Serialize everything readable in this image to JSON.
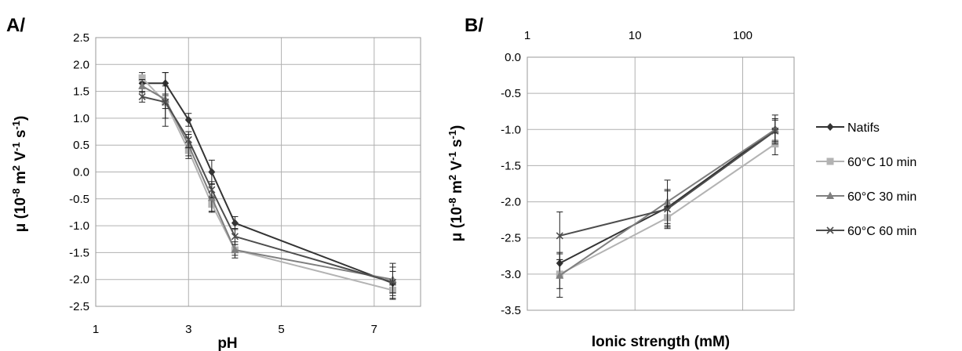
{
  "colors": {
    "Natifs": "#333333",
    "60°C 10 min": "#b3b3b3",
    "60°C 30 min": "#7f7f7f",
    "60°C 60 min": "#4d4d4d",
    "grid": "#b0b0b0",
    "errorbar": "#222222"
  },
  "legend": {
    "items": [
      {
        "label": "Natifs",
        "marker": "diamond"
      },
      {
        "label": "60°C 10 min",
        "marker": "square"
      },
      {
        "label": "60°C 30 min",
        "marker": "triangle"
      },
      {
        "label": "60°C 60 min",
        "marker": "x"
      }
    ],
    "placement": "right"
  },
  "chart_data": [
    {
      "panel_label": "A/",
      "type": "line",
      "xlabel": "pH",
      "ylabel": "μ (10-8 m2 V-1 s-1)",
      "xlim": [
        1,
        8
      ],
      "ylim": [
        -2.5,
        2.5
      ],
      "x_ticks": [
        "1",
        "3",
        "5",
        "7"
      ],
      "x_tick_values": [
        1,
        3,
        5,
        7
      ],
      "y_ticks": [
        "2.5",
        "2.0",
        "1.5",
        "1.0",
        "0.5",
        "0.0",
        "-0.5",
        "-1.0",
        "-1.5",
        "-2.0",
        "-2.5"
      ],
      "y_tick_values": [
        2.5,
        2.0,
        1.5,
        1.0,
        0.5,
        0.0,
        -0.5,
        -1.0,
        -1.5,
        -2.0,
        -2.5
      ],
      "grid": true,
      "series": [
        {
          "name": "Natifs",
          "x": [
            2,
            2.5,
            3,
            3.5,
            4,
            7.4
          ],
          "y": [
            1.65,
            1.65,
            0.97,
            0.0,
            -0.95,
            -2.07
          ],
          "err": [
            0.1,
            0.2,
            0.12,
            0.22,
            0.12,
            0.3
          ]
        },
        {
          "name": "60°C 10 min",
          "x": [
            2,
            2.5,
            3,
            3.5,
            4,
            7.4
          ],
          "y": [
            1.75,
            1.3,
            0.4,
            -0.6,
            -1.45,
            -2.2
          ],
          "err": [
            0.1,
            0.12,
            0.15,
            0.15,
            0.1,
            0.15
          ]
        },
        {
          "name": "60°C 30 min",
          "x": [
            2,
            2.5,
            3,
            3.5,
            4,
            7.4
          ],
          "y": [
            1.6,
            1.35,
            0.5,
            -0.48,
            -1.45,
            -2.0
          ],
          "err": [
            0.12,
            0.5,
            0.2,
            0.25,
            0.15,
            0.3
          ]
        },
        {
          "name": "60°C 60 min",
          "x": [
            2,
            2.5,
            3,
            3.5,
            4,
            7.4
          ],
          "y": [
            1.4,
            1.3,
            0.6,
            -0.33,
            -1.2,
            -2.05
          ],
          "err": [
            0.1,
            0.3,
            0.15,
            0.15,
            0.15,
            0.2
          ]
        }
      ]
    },
    {
      "panel_label": "B/",
      "type": "line",
      "xscale": "log",
      "xlabel": "Ionic strength (mM)",
      "ylabel": "μ (10-8 m2 V-1 s-1)",
      "xlim": [
        1,
        300
      ],
      "ylim": [
        -3.5,
        0.0
      ],
      "x_ticks": [
        "1",
        "10",
        "100"
      ],
      "x_tick_values": [
        1,
        10,
        100
      ],
      "y_ticks": [
        "0.0",
        "-0.5",
        "-1.0",
        "-1.5",
        "-2.0",
        "-2.5",
        "-3.0",
        "-3.5"
      ],
      "y_tick_values": [
        0.0,
        -0.5,
        -1.0,
        -1.5,
        -2.0,
        -2.5,
        -3.0,
        -3.5
      ],
      "grid": true,
      "series": [
        {
          "name": "Natifs",
          "x": [
            2,
            20,
            200
          ],
          "y": [
            -2.85,
            -2.08,
            -1.0
          ],
          "err": [
            0.15,
            0.25,
            0.15
          ]
        },
        {
          "name": "60°C 10 min",
          "x": [
            2,
            20,
            200
          ],
          "y": [
            -3.0,
            -2.22,
            -1.2
          ],
          "err": [
            0.2,
            0.15,
            0.15
          ]
        },
        {
          "name": "60°C 30 min",
          "x": [
            2,
            20,
            200
          ],
          "y": [
            -3.02,
            -2.0,
            -1.0
          ],
          "err": [
            0.3,
            0.3,
            0.2
          ]
        },
        {
          "name": "60°C 60 min",
          "x": [
            2,
            20,
            200
          ],
          "y": [
            -2.47,
            -2.1,
            -1.02
          ],
          "err": [
            0.33,
            0.25,
            0.15
          ]
        }
      ]
    }
  ]
}
